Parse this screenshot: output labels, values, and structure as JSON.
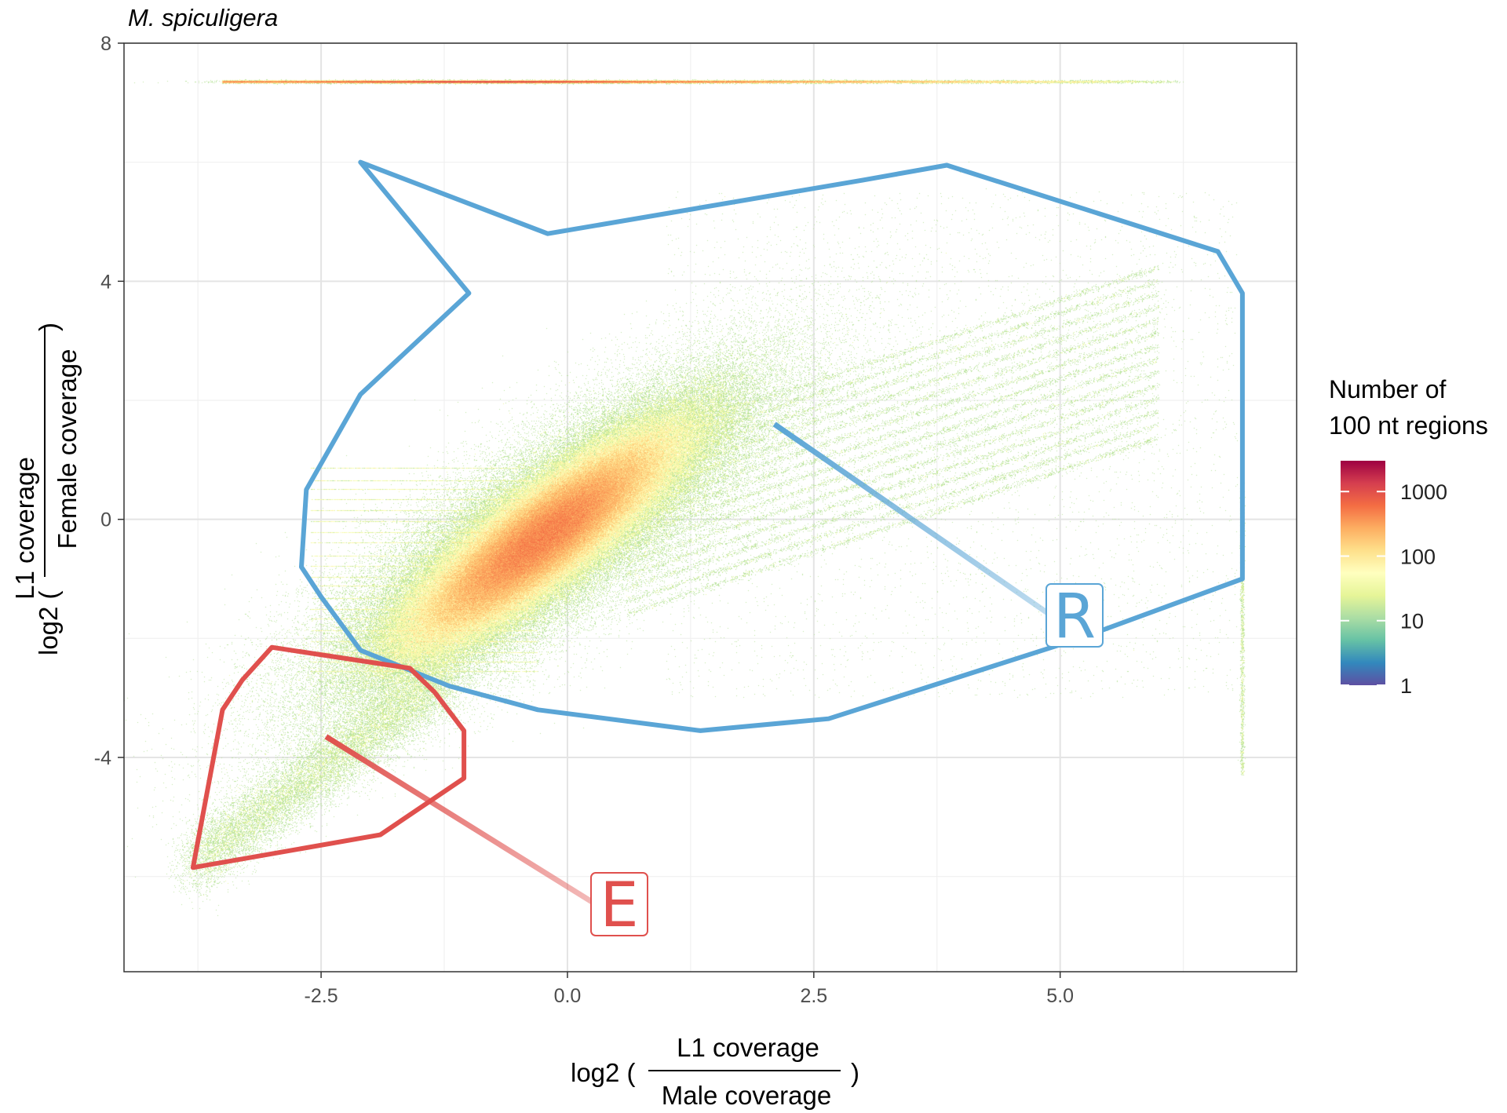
{
  "chart_data": {
    "type": "scatter",
    "title": "M. spiculigera",
    "xlabel": {
      "prefix": "log2 (",
      "numerator": "L1 coverage",
      "denominator": "Male coverage",
      "suffix": ")"
    },
    "ylabel": {
      "prefix": "log2 (",
      "numerator": "L1 coverage",
      "denominator": "Female coverage",
      "suffix": ")"
    },
    "xlim": [
      -4.5,
      7.4
    ],
    "ylim": [
      -7.6,
      8
    ],
    "x_ticks": [
      {
        "value": -2.5,
        "label": "-2.5"
      },
      {
        "value": 0.0,
        "label": "0.0"
      },
      {
        "value": 2.5,
        "label": "2.5"
      },
      {
        "value": 5.0,
        "label": "5.0"
      }
    ],
    "y_ticks": [
      {
        "value": -4,
        "label": "-4"
      },
      {
        "value": 0,
        "label": "0"
      },
      {
        "value": 4,
        "label": "4"
      },
      {
        "value": 8,
        "label": "8"
      }
    ],
    "grid": true,
    "density_peak": {
      "x": -0.25,
      "y": -0.3
    },
    "top_band_y": 7.35,
    "legend": {
      "title_line1": "Number of",
      "title_line2": "100 nt regions",
      "scale": "log",
      "placement": "right",
      "colors": [
        "#5e4fa2",
        "#3288bd",
        "#66c2a5",
        "#abdda4",
        "#e6f598",
        "#ffffbf",
        "#fee08b",
        "#fdae61",
        "#f46d43",
        "#d53e4f",
        "#9e0142"
      ],
      "breaks": [
        {
          "value": 1,
          "label": "1"
        },
        {
          "value": 10,
          "label": "10"
        },
        {
          "value": 100,
          "label": "100"
        },
        {
          "value": 1000,
          "label": "1000"
        }
      ],
      "range": [
        1,
        3000
      ]
    },
    "annotations": [
      {
        "label": "R",
        "color": "#5aa5d6",
        "polygon": [
          [
            -2.1,
            6.0
          ],
          [
            -0.2,
            4.8
          ],
          [
            3.0,
            5.7
          ],
          [
            3.85,
            5.95
          ],
          [
            6.6,
            4.5
          ],
          [
            6.85,
            3.8
          ],
          [
            6.85,
            -1.0
          ],
          [
            5.2,
            -2.0
          ],
          [
            2.65,
            -3.35
          ],
          [
            1.35,
            -3.55
          ],
          [
            -0.3,
            -3.2
          ],
          [
            -1.2,
            -2.8
          ],
          [
            -2.1,
            -2.2
          ],
          [
            -2.5,
            -1.3
          ],
          [
            -2.7,
            -0.8
          ],
          [
            -2.65,
            0.5
          ],
          [
            -2.1,
            2.1
          ],
          [
            -1.0,
            3.8
          ]
        ],
        "pointer_from": [
          2.1,
          1.6
        ]
      },
      {
        "label": "E",
        "color": "#e0504d",
        "polygon": [
          [
            -3.0,
            -2.15
          ],
          [
            -1.6,
            -2.5
          ],
          [
            -1.35,
            -2.9
          ],
          [
            -1.05,
            -3.55
          ],
          [
            -1.05,
            -4.35
          ],
          [
            -1.9,
            -5.3
          ],
          [
            -3.8,
            -5.85
          ],
          [
            -3.5,
            -3.2
          ],
          [
            -3.3,
            -2.7
          ]
        ],
        "pointer_from": [
          -2.45,
          -3.65
        ]
      }
    ]
  }
}
